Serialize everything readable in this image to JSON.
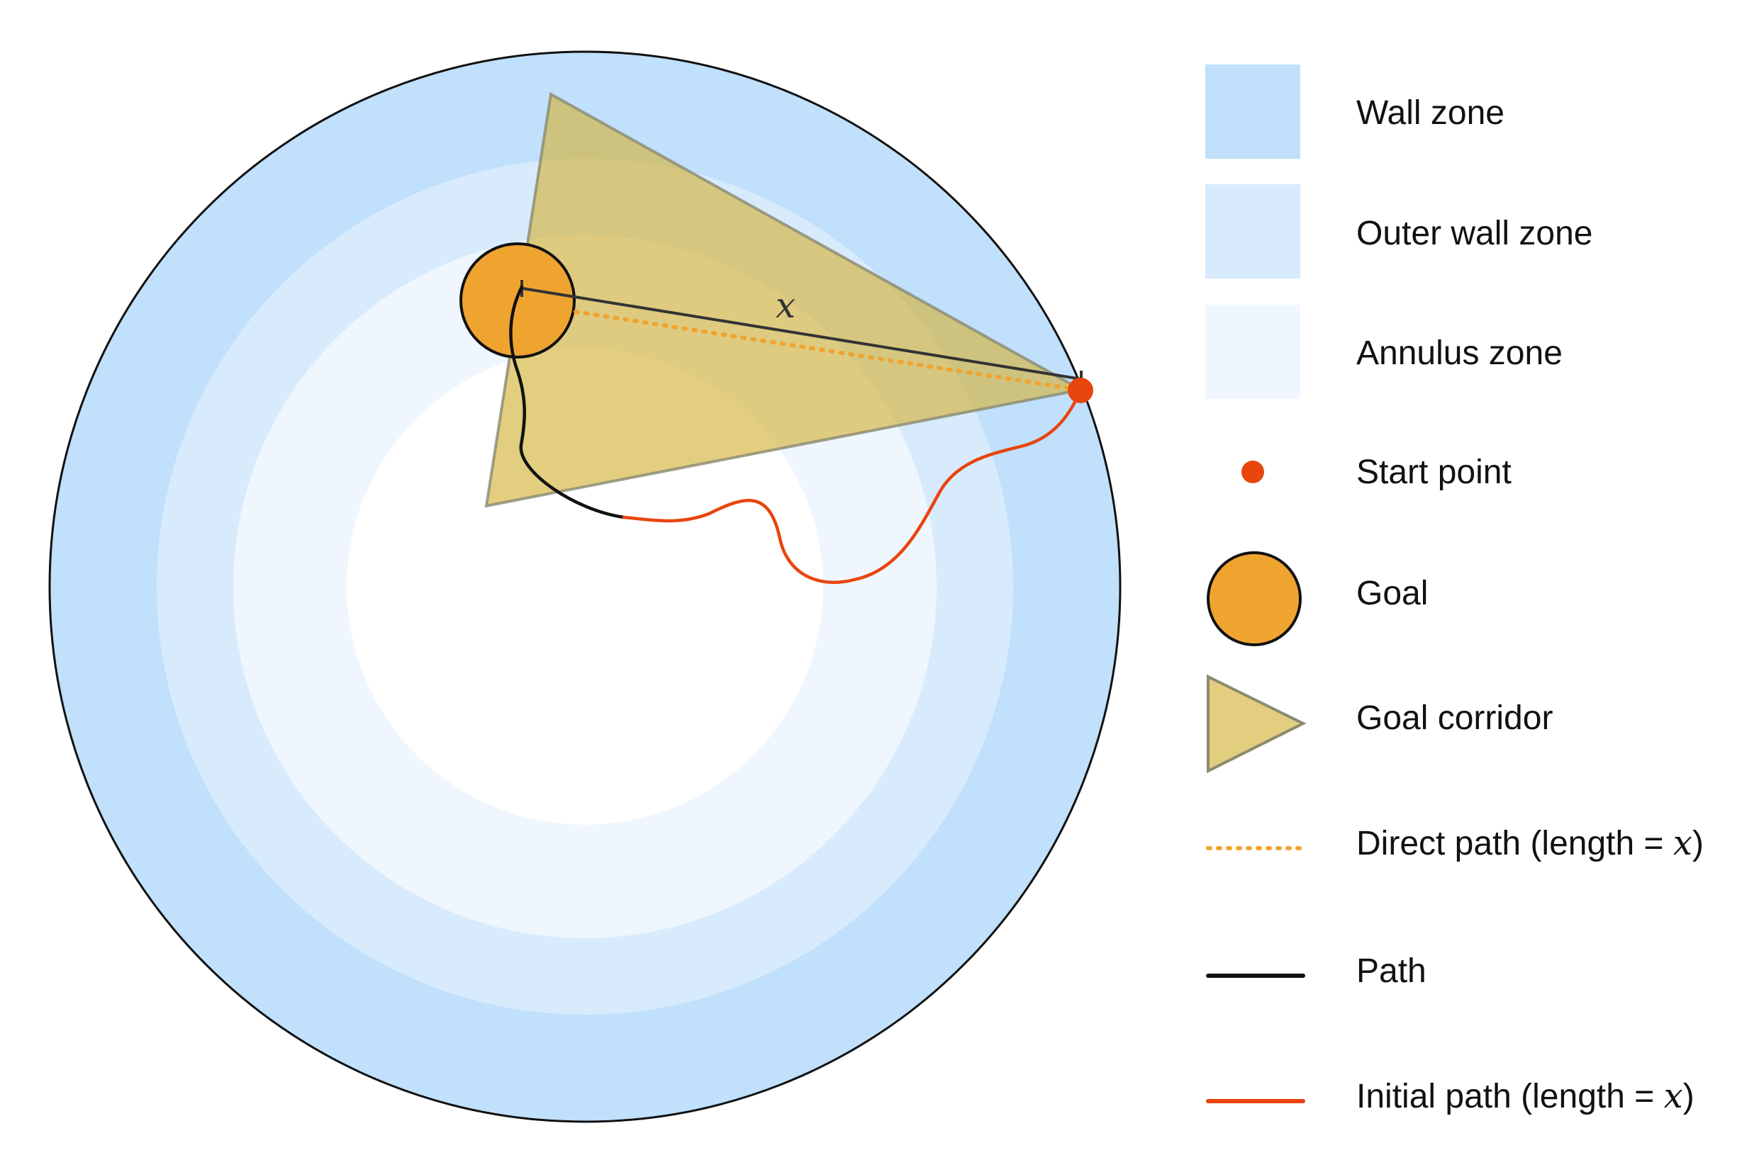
{
  "diagram": {
    "distance_label": "x",
    "colors": {
      "wall_zone": "#c0e0fc",
      "outer_wall_zone": "#d8ebfd",
      "annulus_zone": "#eff6fe",
      "center": "#ffffff",
      "goal": "#f0a430",
      "goal_corridor": "#d4b43c",
      "start_point": "#e8450f",
      "direct_path": "#f0a430",
      "path": "#111111",
      "initial_path": "#e8450f",
      "distance_line": "#333333"
    }
  },
  "legend": {
    "items": [
      {
        "key": "wall_zone",
        "label": "Wall zone"
      },
      {
        "key": "outer_wall_zone",
        "label": "Outer wall zone"
      },
      {
        "key": "annulus_zone",
        "label": "Annulus zone"
      },
      {
        "key": "start_point",
        "label": "Start point"
      },
      {
        "key": "goal",
        "label": "Goal"
      },
      {
        "key": "goal_corridor",
        "label": "Goal corridor"
      },
      {
        "key": "direct_path",
        "label": "Direct path (length = ",
        "suffix": "x",
        "close": ")"
      },
      {
        "key": "path",
        "label": "Path"
      },
      {
        "key": "initial_path",
        "label": "Initial path (length = ",
        "suffix": "x",
        "close": ")"
      }
    ]
  }
}
